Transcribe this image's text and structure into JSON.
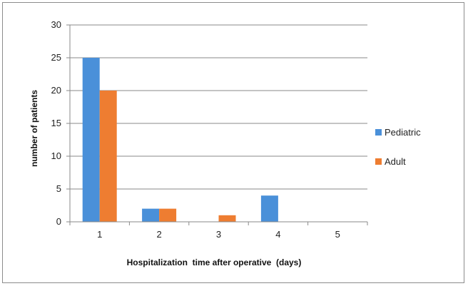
{
  "chart_data": {
    "type": "bar",
    "title": "",
    "xlabel": "Hospitalization  time after operative  (days)",
    "ylabel": "number of patients",
    "categories": [
      "1",
      "2",
      "3",
      "4",
      "5"
    ],
    "yticks": [
      "0",
      "5",
      "10",
      "15",
      "20",
      "25",
      "30"
    ],
    "ylim": [
      0,
      30
    ],
    "grid": true,
    "legend_position": "right",
    "series": [
      {
        "name": "Pediatric",
        "color": "#4a90d9",
        "values": [
          25,
          2,
          0,
          4,
          0
        ]
      },
      {
        "name": "Adult",
        "color": "#ee7d31",
        "values": [
          20,
          2,
          1,
          0,
          0
        ]
      }
    ]
  }
}
